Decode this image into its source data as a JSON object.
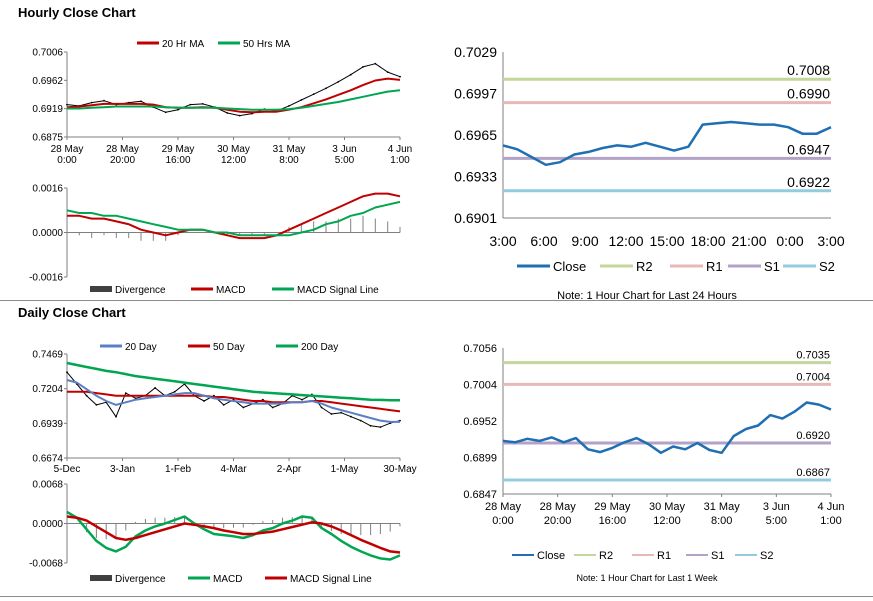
{
  "titles": {
    "hourly": "Hourly Close Chart",
    "daily": "Daily Close Chart"
  },
  "colors": {
    "close": "#1f6fb2",
    "ma20_hourly": "#c00000",
    "ma50_hourly": "#00a651",
    "day20": "#5b7fc4",
    "day50": "#c00000",
    "day200": "#00a651",
    "macd_h": "#c00000",
    "signal_h": "#00a651",
    "macd_d": "#00a651",
    "signal_d": "#c00000",
    "divergence": "#808080",
    "r2": "#c3d69b",
    "r1": "#e6b9b8",
    "s1": "#b3a2c7",
    "s2": "#93cddd"
  },
  "chart_data": [
    {
      "id": "hourly_price",
      "type": "line",
      "legend": [
        "20 Hr MA",
        "50 Hrs MA"
      ],
      "x_ticks": [
        [
          "28 May",
          "0:00"
        ],
        [
          "28 May",
          "20:00"
        ],
        [
          "29 May",
          "16:00"
        ],
        [
          "30 May",
          "12:00"
        ],
        [
          "31 May",
          "8:00"
        ],
        [
          "3 Jun",
          "5:00"
        ],
        [
          "4 Jun",
          "1:00"
        ]
      ],
      "y_ticks": [
        "0.7006",
        "0.6962",
        "0.6919",
        "0.6875"
      ],
      "ylim": [
        0.6875,
        0.7006
      ],
      "close": [
        0.6925,
        0.6923,
        0.6928,
        0.6931,
        0.6925,
        0.6928,
        0.693,
        0.6921,
        0.6913,
        0.6917,
        0.6925,
        0.6926,
        0.6921,
        0.6912,
        0.6908,
        0.6911,
        0.6918,
        0.6915,
        0.6923,
        0.6932,
        0.6941,
        0.695,
        0.696,
        0.6971,
        0.6983,
        0.6988,
        0.6975,
        0.6968
      ],
      "ma20": [
        0.6921,
        0.6922,
        0.6924,
        0.6926,
        0.6926,
        0.6926,
        0.6926,
        0.6925,
        0.6921,
        0.692,
        0.692,
        0.6921,
        0.692,
        0.6917,
        0.6914,
        0.6913,
        0.6914,
        0.6914,
        0.6917,
        0.6921,
        0.6927,
        0.6933,
        0.694,
        0.6947,
        0.6955,
        0.6962,
        0.6965,
        0.6963
      ],
      "ma50": [
        0.6919,
        0.6919,
        0.692,
        0.6921,
        0.6922,
        0.6922,
        0.6922,
        0.6922,
        0.6921,
        0.692,
        0.692,
        0.692,
        0.692,
        0.6919,
        0.6918,
        0.6917,
        0.6917,
        0.6917,
        0.6918,
        0.692,
        0.6923,
        0.6926,
        0.6929,
        0.6933,
        0.6937,
        0.6941,
        0.6945,
        0.6947
      ]
    },
    {
      "id": "hourly_macd",
      "type": "line",
      "legend": [
        "Divergence",
        "MACD",
        "MACD Signal Line"
      ],
      "y_ticks": [
        "0.0016",
        "0.0000",
        "-0.0016"
      ],
      "ylim": [
        -0.0016,
        0.0016
      ],
      "macd": [
        0.0006,
        0.0006,
        0.0005,
        0.0005,
        0.0004,
        0.0003,
        0.0001,
        0.0,
        -0.0001,
        0.0,
        0.0001,
        0.0001,
        0.0,
        -0.0001,
        -0.0002,
        -0.0002,
        -0.0002,
        -0.0001,
        0.0001,
        0.0003,
        0.0005,
        0.0007,
        0.0009,
        0.0011,
        0.0013,
        0.0014,
        0.0014,
        0.0013
      ],
      "signal": [
        0.0008,
        0.0007,
        0.0007,
        0.0006,
        0.0006,
        0.0005,
        0.0004,
        0.0003,
        0.0002,
        0.0001,
        0.0001,
        0.0001,
        0.0,
        0.0,
        -0.0001,
        -0.0001,
        -0.0001,
        -0.0001,
        -0.0001,
        0.0,
        0.0001,
        0.0003,
        0.0004,
        0.0006,
        0.0007,
        0.0009,
        0.001,
        0.0011
      ]
    },
    {
      "id": "hourly_24h",
      "type": "line",
      "legend": [
        "Close",
        "R2",
        "R1",
        "S1",
        "S2"
      ],
      "note": "Note: 1 Hour Chart for Last 24 Hours",
      "x_ticks": [
        "3:00",
        "6:00",
        "9:00",
        "12:00",
        "15:00",
        "18:00",
        "21:00",
        "0:00",
        "3:00"
      ],
      "y_ticks": [
        "0.7029",
        "0.6997",
        "0.6965",
        "0.6933",
        "0.6901"
      ],
      "ylim": [
        0.6901,
        0.7029
      ],
      "close": [
        0.6957,
        0.6954,
        0.6948,
        0.6942,
        0.6944,
        0.695,
        0.6952,
        0.6955,
        0.6957,
        0.6956,
        0.6959,
        0.6956,
        0.6953,
        0.6956,
        0.6973,
        0.6974,
        0.6975,
        0.6974,
        0.6973,
        0.6973,
        0.6971,
        0.6966,
        0.6966,
        0.6971
      ],
      "levels": [
        {
          "name": "R2",
          "value": 0.7008,
          "label": "0.7008"
        },
        {
          "name": "R1",
          "value": 0.699,
          "label": "0.6990"
        },
        {
          "name": "S1",
          "value": 0.6947,
          "label": "0.6947"
        },
        {
          "name": "S2",
          "value": 0.6922,
          "label": "0.6922"
        }
      ]
    },
    {
      "id": "daily_price",
      "type": "line",
      "legend": [
        "20 Day",
        "50 Day",
        "200 Day"
      ],
      "x_ticks": [
        "5-Dec",
        "3-Jan",
        "1-Feb",
        "4-Mar",
        "2-Apr",
        "1-May",
        "30-May"
      ],
      "y_ticks": [
        "0.7469",
        "0.7204",
        "0.6939",
        "0.6674"
      ],
      "ylim": [
        0.6674,
        0.7469
      ],
      "close": [
        0.733,
        0.724,
        0.715,
        0.708,
        0.71,
        0.699,
        0.717,
        0.713,
        0.715,
        0.721,
        0.715,
        0.718,
        0.724,
        0.715,
        0.711,
        0.715,
        0.708,
        0.712,
        0.706,
        0.709,
        0.712,
        0.706,
        0.709,
        0.715,
        0.712,
        0.716,
        0.706,
        0.701,
        0.702,
        0.699,
        0.696,
        0.692,
        0.691,
        0.694,
        0.696
      ],
      "d20": [
        0.727,
        0.725,
        0.72,
        0.715,
        0.711,
        0.708,
        0.71,
        0.712,
        0.713,
        0.714,
        0.715,
        0.716,
        0.717,
        0.717,
        0.715,
        0.713,
        0.712,
        0.711,
        0.71,
        0.709,
        0.709,
        0.709,
        0.709,
        0.71,
        0.71,
        0.711,
        0.709,
        0.706,
        0.704,
        0.702,
        0.7,
        0.698,
        0.696,
        0.695,
        0.695
      ],
      "d50": [
        0.718,
        0.718,
        0.718,
        0.717,
        0.716,
        0.715,
        0.715,
        0.715,
        0.715,
        0.715,
        0.715,
        0.715,
        0.715,
        0.715,
        0.715,
        0.714,
        0.714,
        0.713,
        0.712,
        0.711,
        0.711,
        0.71,
        0.71,
        0.71,
        0.71,
        0.711,
        0.711,
        0.71,
        0.709,
        0.708,
        0.707,
        0.706,
        0.705,
        0.704,
        0.703
      ],
      "d200": [
        0.74,
        0.7385,
        0.737,
        0.7355,
        0.734,
        0.733,
        0.7315,
        0.73,
        0.729,
        0.728,
        0.727,
        0.726,
        0.725,
        0.724,
        0.723,
        0.722,
        0.721,
        0.72,
        0.719,
        0.718,
        0.7175,
        0.717,
        0.7165,
        0.716,
        0.7155,
        0.715,
        0.7145,
        0.714,
        0.7135,
        0.713,
        0.7125,
        0.712,
        0.7118,
        0.7116,
        0.7115
      ]
    },
    {
      "id": "daily_macd",
      "type": "line",
      "legend": [
        "Divergence",
        "MACD",
        "MACD Signal Line"
      ],
      "y_ticks": [
        "0.0068",
        "0.0000",
        "-0.0068"
      ],
      "ylim": [
        -0.0068,
        0.0068
      ],
      "macd": [
        0.002,
        0.001,
        -0.001,
        -0.003,
        -0.0042,
        -0.0048,
        -0.004,
        -0.0022,
        -0.0012,
        -0.0005,
        0.0,
        0.0006,
        0.0012,
        0.0,
        -0.001,
        -0.0018,
        -0.002,
        -0.0022,
        -0.0025,
        -0.002,
        -0.0012,
        -0.0008,
        0.0,
        0.0005,
        0.0012,
        0.001,
        -0.0008,
        -0.0018,
        -0.003,
        -0.004,
        -0.0048,
        -0.0055,
        -0.006,
        -0.0062,
        -0.0055
      ],
      "signal": [
        0.0012,
        0.001,
        0.0005,
        -0.0005,
        -0.0015,
        -0.0025,
        -0.0028,
        -0.0025,
        -0.002,
        -0.0015,
        -0.001,
        -0.0005,
        0.0,
        -0.0002,
        -0.0005,
        -0.0008,
        -0.0012,
        -0.0015,
        -0.0018,
        -0.0018,
        -0.0016,
        -0.0014,
        -0.001,
        -0.0006,
        -0.0002,
        0.0002,
        0.0,
        -0.0005,
        -0.0012,
        -0.002,
        -0.0028,
        -0.0035,
        -0.0042,
        -0.0048,
        -0.005
      ]
    },
    {
      "id": "daily_week",
      "type": "line",
      "legend": [
        "Close",
        "R2",
        "R1",
        "S1",
        "S2"
      ],
      "note": "Note: 1 Hour Chart for Last 1 Week",
      "x_ticks": [
        [
          "28 May",
          "0:00"
        ],
        [
          "28 May",
          "20:00"
        ],
        [
          "29 May",
          "16:00"
        ],
        [
          "30 May",
          "12:00"
        ],
        [
          "31 May",
          "8:00"
        ],
        [
          "3 Jun",
          "5:00"
        ],
        [
          "4 Jun",
          "1:00"
        ]
      ],
      "y_ticks": [
        "0.7056",
        "0.7004",
        "0.6952",
        "0.6899",
        "0.6847"
      ],
      "ylim": [
        0.6847,
        0.7056
      ],
      "close": [
        0.6923,
        0.6921,
        0.6926,
        0.6923,
        0.6928,
        0.6921,
        0.6927,
        0.6911,
        0.6907,
        0.6913,
        0.6921,
        0.6927,
        0.6918,
        0.6906,
        0.6915,
        0.6911,
        0.692,
        0.691,
        0.6906,
        0.693,
        0.694,
        0.6945,
        0.696,
        0.6955,
        0.6965,
        0.6978,
        0.6975,
        0.6968
      ],
      "levels": [
        {
          "name": "R2",
          "value": 0.7035,
          "label": "0.7035"
        },
        {
          "name": "R1",
          "value": 0.7004,
          "label": "0.7004"
        },
        {
          "name": "S1",
          "value": 0.692,
          "label": "0.6920"
        },
        {
          "name": "S2",
          "value": 0.6867,
          "label": "0.6867"
        }
      ]
    }
  ]
}
